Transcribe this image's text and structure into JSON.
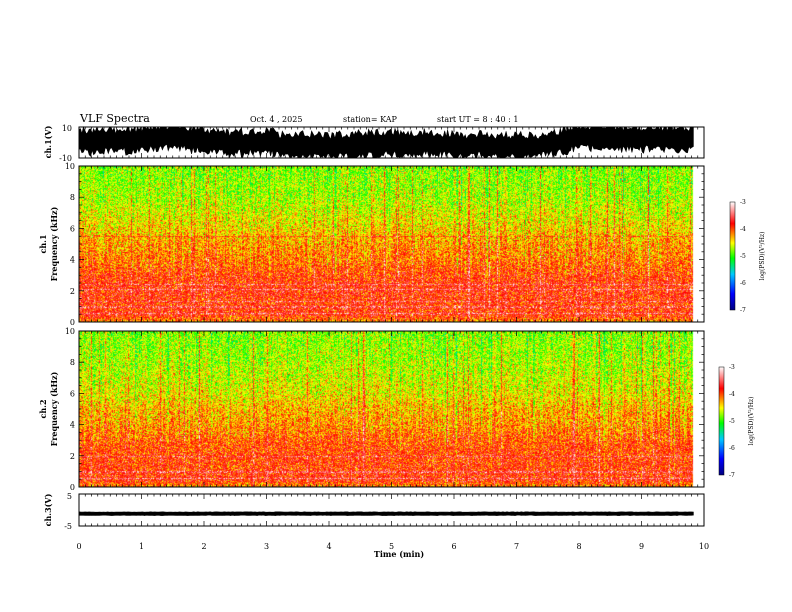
{
  "header": {
    "title": "VLF Spectra",
    "date": "Oct. 4 , 2025",
    "station": "station= KAP",
    "start_ut": "start  UT  =   8  : 40 : 1"
  },
  "chart_data": [
    {
      "type": "line",
      "name": "ch1-waveform",
      "ylabel": "ch.1(V)",
      "ylim": [
        -10,
        10
      ],
      "y_tick_labels": [
        "10",
        "-10"
      ],
      "x_unit": "min",
      "xlim": [
        0,
        10
      ],
      "data_extent_x": [
        0,
        9.83
      ],
      "description": "noisy waveform, mostly within about -9 to +10 V, filled black envelope"
    },
    {
      "type": "heatmap",
      "name": "ch1-spectrogram",
      "ylabel_line1": "ch.1",
      "ylabel_line2": "Frequency  (kHz)",
      "ylim": [
        0,
        10
      ],
      "y_tick_labels": [
        "0",
        "2",
        "4",
        "6",
        "8",
        "10"
      ],
      "xlim": [
        0,
        10
      ],
      "data_extent_x": [
        0,
        9.83
      ],
      "colorbar": {
        "label": "log(PSD)(V²/Hz)",
        "range": [
          -7,
          -3
        ],
        "tick_labels": [
          "-3",
          "-4",
          "-5",
          "-6",
          "-7"
        ],
        "colors": [
          "#000080",
          "#0000ff",
          "#00c8ff",
          "#00ff00",
          "#ffff00",
          "#ff0000",
          "#ffffff"
        ]
      },
      "intensity_profile_khz": [
        [
          0,
          -4.2
        ],
        [
          0.5,
          -3.8
        ],
        [
          1.0,
          -3.9
        ],
        [
          2.0,
          -3.8
        ],
        [
          3.0,
          -3.9
        ],
        [
          4.0,
          -4.1
        ],
        [
          5.0,
          -4.2
        ],
        [
          6.0,
          -4.4
        ],
        [
          8.0,
          -4.7
        ],
        [
          10.0,
          -4.8
        ]
      ],
      "lines_khz": [
        0.6,
        1.0,
        1.35,
        2.1,
        2.45,
        5.5
      ]
    },
    {
      "type": "heatmap",
      "name": "ch2-spectrogram",
      "ylabel_line1": "ch.2",
      "ylabel_line2": "Frequency  (kHz)",
      "ylim": [
        0,
        10
      ],
      "y_tick_labels": [
        "0",
        "2",
        "4",
        "6",
        "8",
        "10"
      ],
      "xlim": [
        0,
        10
      ],
      "data_extent_x": [
        0,
        9.83
      ],
      "colorbar": {
        "label": "log(PSD)(V²/Hz)",
        "range": [
          -7,
          -3
        ],
        "tick_labels": [
          "-3",
          "-4",
          "-5",
          "-6",
          "-7"
        ],
        "colors": [
          "#000080",
          "#0000ff",
          "#00c8ff",
          "#00ff00",
          "#ffff00",
          "#ff0000",
          "#ffffff"
        ]
      },
      "intensity_profile_khz": [
        [
          0,
          -4.2
        ],
        [
          0.5,
          -3.8
        ],
        [
          1.0,
          -3.9
        ],
        [
          2.0,
          -3.9
        ],
        [
          3.0,
          -4.0
        ],
        [
          4.0,
          -4.2
        ],
        [
          5.0,
          -4.3
        ],
        [
          6.0,
          -4.5
        ],
        [
          8.0,
          -4.7
        ],
        [
          10.0,
          -4.8
        ]
      ],
      "lines_khz": [
        0.6,
        1.0,
        2.0
      ]
    },
    {
      "type": "line",
      "name": "ch3-waveform",
      "ylabel": "ch.3(V)",
      "ylim": [
        -5,
        5
      ],
      "y_tick_labels": [
        "5",
        "-5"
      ],
      "xlim": [
        0,
        10
      ],
      "data_extent_x": [
        0,
        9.83
      ],
      "description": "thin constant band near -1 V"
    }
  ],
  "xaxis": {
    "label": "Time  (min)",
    "tick_labels": [
      "0",
      "1",
      "2",
      "3",
      "4",
      "5",
      "6",
      "7",
      "8",
      "9",
      "10"
    ]
  }
}
